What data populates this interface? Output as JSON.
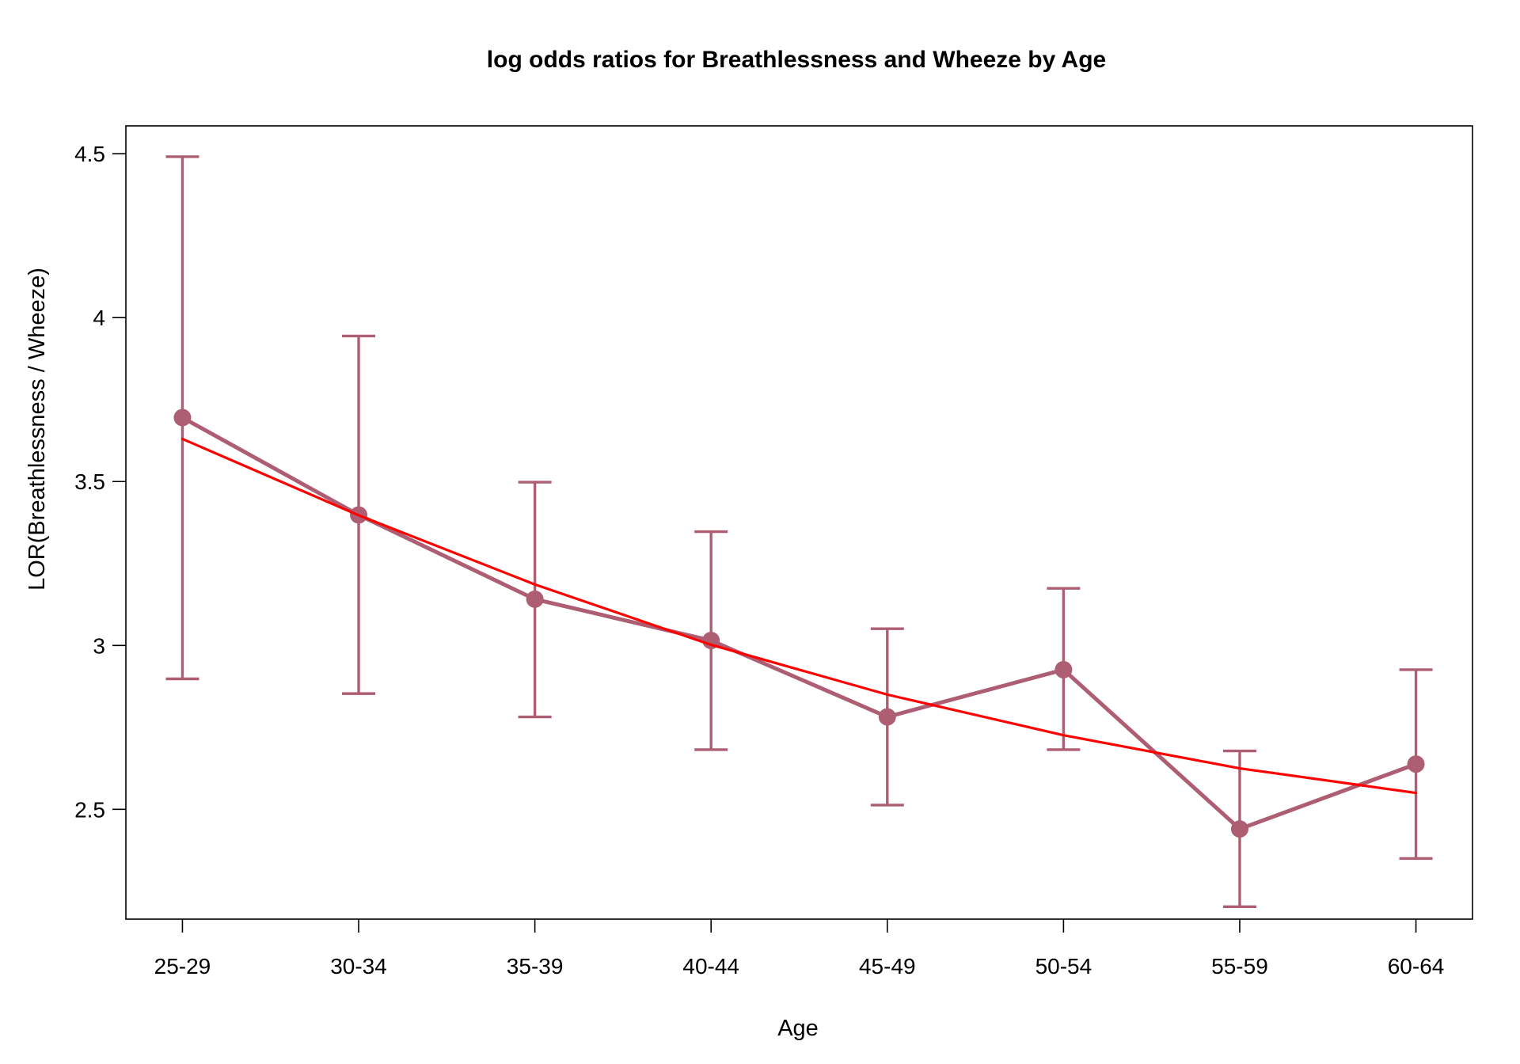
{
  "chart_data": {
    "type": "line",
    "title": "log odds ratios for Breathlessness and Wheeze by Age",
    "xlabel": "Age",
    "ylabel": "LOR(Breathlessness / Wheeze)",
    "categories": [
      "25-29",
      "30-34",
      "35-39",
      "40-44",
      "45-49",
      "50-54",
      "55-59",
      "60-64"
    ],
    "ylim": [
      2.165,
      4.585
    ],
    "yticks": [
      2.5,
      3,
      3.5,
      4,
      4.5
    ],
    "ytick_labels": [
      "2.5",
      "3",
      "3.5",
      "4",
      "4.5"
    ],
    "grid": false,
    "series": [
      {
        "values": [
          3.695,
          3.398,
          3.141,
          3.015,
          2.782,
          2.926,
          2.44,
          2.638
        ],
        "lower": [
          2.898,
          2.853,
          2.782,
          2.682,
          2.513,
          2.682,
          2.203,
          2.35
        ],
        "upper": [
          4.491,
          3.944,
          3.498,
          3.347,
          3.051,
          3.174,
          2.678,
          2.926
        ],
        "color": "#AE5E72",
        "markers": true,
        "error_bars": true
      },
      {
        "values": [
          3.63,
          3.397,
          3.186,
          3.002,
          2.85,
          2.726,
          2.625,
          2.55
        ],
        "color": "#FF0000",
        "markers": false,
        "error_bars": false
      }
    ]
  }
}
